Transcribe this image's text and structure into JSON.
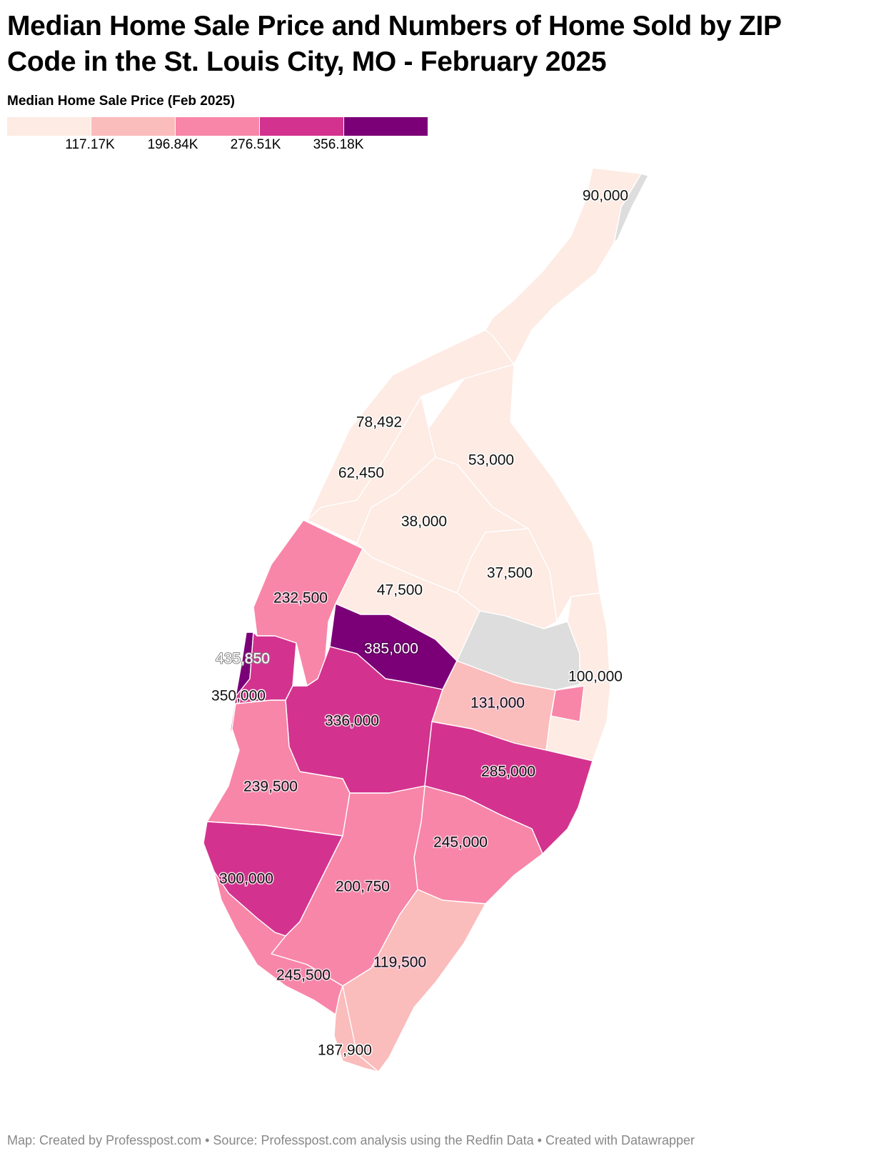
{
  "title": "Median Home Sale Price and Numbers of Home Sold by ZIP Code in the St. Louis City, MO - February 2025",
  "legend": {
    "title": "Median Home Sale Price (Feb 2025)",
    "colors": [
      "#fdebe4",
      "#fbbcbc",
      "#f886a9",
      "#d3338f",
      "#7b0077"
    ],
    "breaks": [
      "117.17K",
      "196.84K",
      "276.51K",
      "356.18K"
    ]
  },
  "map": {
    "no_data_color": "#dddddd",
    "regions": [
      {
        "name": "far-north",
        "value": 90000,
        "label": "90,000",
        "color": "#fdebe4"
      },
      {
        "name": "north-west",
        "value": 78492,
        "label": "78,492",
        "color": "#fdebe4"
      },
      {
        "name": "north-east",
        "value": 53000,
        "label": "53,000",
        "color": "#fdebe4"
      },
      {
        "name": "north-central-west",
        "value": 62450,
        "label": "62,450",
        "color": "#fdebe4"
      },
      {
        "name": "north-central",
        "value": 38000,
        "label": "38,000",
        "color": "#fdebe4"
      },
      {
        "name": "near-north",
        "value": 37500,
        "label": "37,500",
        "color": "#fdebe4"
      },
      {
        "name": "mid-west",
        "value": 47500,
        "label": "47,500",
        "color": "#fdebe4"
      },
      {
        "name": "riverfront",
        "value": 100000,
        "label": "100,000",
        "color": "#fdebe4"
      },
      {
        "name": "west-end",
        "value": 232500,
        "label": "232,500",
        "color": "#f886a9"
      },
      {
        "name": "central-west-end",
        "value": 385000,
        "label": "385,000",
        "color": "#7b0077"
      },
      {
        "name": "city-edge",
        "value": 435850,
        "label": "435,850",
        "color": "#7b0077"
      },
      {
        "name": "forest-park-south",
        "value": 350000,
        "label": "350,000",
        "color": "#d3338f"
      },
      {
        "name": "midtown",
        "value": 131000,
        "label": "131,000",
        "color": "#fbbcbc"
      },
      {
        "name": "the-hill",
        "value": 336000,
        "label": "336,000",
        "color": "#d3338f"
      },
      {
        "name": "southwest",
        "value": 239500,
        "label": "239,500",
        "color": "#f886a9"
      },
      {
        "name": "soulard",
        "value": 285000,
        "label": "285,000",
        "color": "#d3338f"
      },
      {
        "name": "tower-grove-east",
        "value": 245000,
        "label": "245,000",
        "color": "#f886a9"
      },
      {
        "name": "st-louis-hills",
        "value": 300000,
        "label": "300,000",
        "color": "#d3338f"
      },
      {
        "name": "bevo",
        "value": 200750,
        "label": "200,750",
        "color": "#f886a9"
      },
      {
        "name": "carondelet",
        "value": 119500,
        "label": "119,500",
        "color": "#fbbcbc"
      },
      {
        "name": "princeton-heights",
        "value": 245500,
        "label": "245,500",
        "color": "#f886a9"
      },
      {
        "name": "far-south",
        "value": 187900,
        "label": "187,900",
        "color": "#fbbcbc"
      }
    ]
  },
  "footer": "Map: Created by Professpost.com  • Source: Professpost.com analysis using the Redfin Data  • Created with Datawrapper"
}
